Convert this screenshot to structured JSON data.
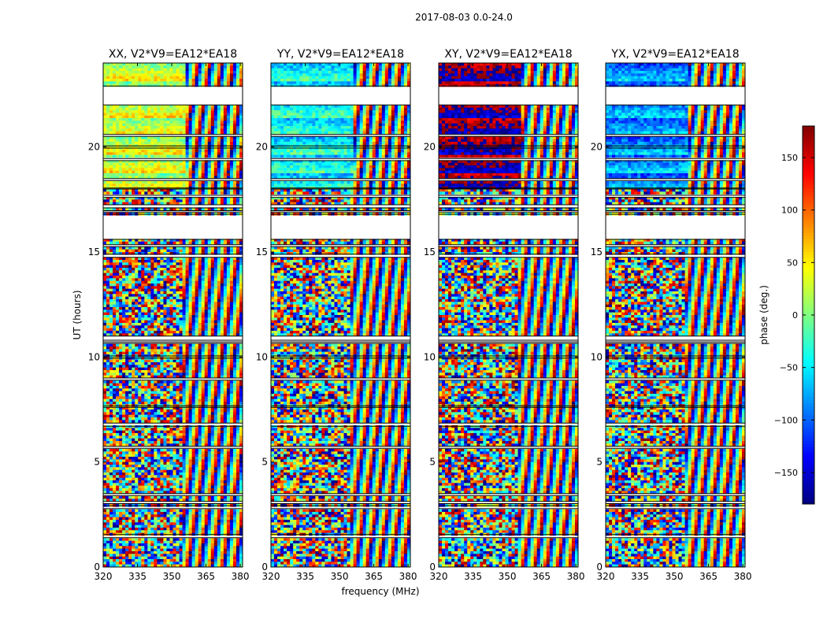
{
  "chart_data": {
    "type": "heatmap",
    "title": "2017-08-03 0.0-24.0",
    "xlabel": "frequency (MHz)",
    "ylabel": "UT (hours)",
    "xlim": [
      320,
      381
    ],
    "ylim": [
      0,
      24
    ],
    "x_ticks": [
      320,
      335,
      350,
      365,
      380
    ],
    "y_ticks": [
      0,
      5,
      10,
      15,
      20
    ],
    "panels": [
      {
        "title": "XX, V2*V9=EA12*EA18",
        "polarization": "XX",
        "offset": 0
      },
      {
        "title": "YY, V2*V9=EA12*EA18",
        "polarization": "YY",
        "offset": -70
      },
      {
        "title": "XY, V2*V9=EA12*EA18",
        "polarization": "XY",
        "offset": 155
      },
      {
        "title": "YX, V2*V9=EA12*EA18",
        "polarization": "YX",
        "offset": -110
      }
    ],
    "flagged_ut_ranges": [
      [
        1.4,
        1.55
      ],
      [
        2.78,
        2.92
      ],
      [
        3.02,
        3.12
      ],
      [
        3.4,
        3.5
      ],
      [
        5.65,
        5.75
      ],
      [
        6.7,
        6.85
      ],
      [
        7.6,
        7.68
      ],
      [
        8.9,
        9.0
      ],
      [
        9.95,
        10.05
      ],
      [
        10.65,
        10.72
      ],
      [
        10.8,
        11.0
      ],
      [
        14.75,
        14.9
      ],
      [
        15.25,
        15.35
      ],
      [
        15.6,
        16.8
      ],
      [
        16.9,
        16.97
      ],
      [
        17.1,
        17.25
      ],
      [
        17.6,
        17.7
      ],
      [
        18.0,
        18.05
      ],
      [
        18.4,
        18.5
      ],
      [
        19.35,
        19.45
      ],
      [
        19.95,
        20.05
      ],
      [
        20.5,
        20.6
      ],
      [
        22.0,
        22.9
      ]
    ],
    "colorbar": {
      "label": "phase (deg.)",
      "min": -180,
      "max": 180,
      "ticks": [
        -150,
        -100,
        -50,
        0,
        50,
        100,
        150
      ],
      "colormap": "jet"
    }
  }
}
